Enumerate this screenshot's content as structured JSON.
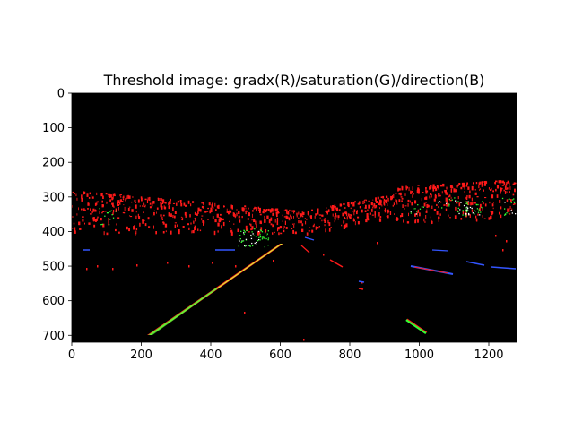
{
  "figure": {
    "title": "Threshold image: gradx(R)/saturation(G)/direction(B)",
    "background": "#ffffff",
    "image_background": "#000000",
    "colors": {
      "gradx": "#ff1a1a",
      "saturation": "#33ff33",
      "direction": "#3355ff",
      "combined": "#ccff33"
    }
  },
  "axes": {
    "x_ticks": [
      "0",
      "200",
      "400",
      "600",
      "800",
      "1000",
      "1200"
    ],
    "y_ticks": [
      "0",
      "100",
      "200",
      "300",
      "400",
      "500",
      "600",
      "700"
    ],
    "x_range": [
      0,
      1280
    ],
    "y_range": [
      0,
      720
    ]
  }
}
